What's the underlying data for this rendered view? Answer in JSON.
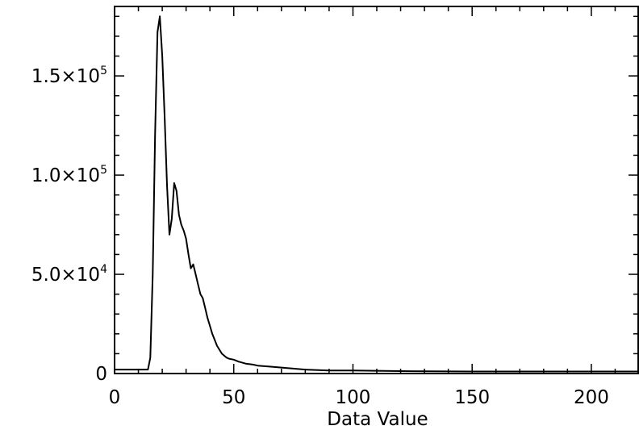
{
  "chart_data": {
    "type": "line",
    "title": "",
    "xlabel": "Data Value",
    "ylabel": "",
    "xlim": [
      0,
      220
    ],
    "ylim": [
      0,
      185000
    ],
    "grid": false,
    "legend": "none",
    "line_color": "#000000",
    "x_ticks": [
      {
        "value": 0,
        "label": "0"
      },
      {
        "value": 50,
        "label": "50"
      },
      {
        "value": 100,
        "label": "100"
      },
      {
        "value": 150,
        "label": "150"
      },
      {
        "value": 200,
        "label": "200"
      }
    ],
    "y_ticks": [
      {
        "value": 0,
        "mantissa": "0",
        "exponent": ""
      },
      {
        "value": 50000,
        "mantissa": "5.0×10",
        "exponent": "4"
      },
      {
        "value": 100000,
        "mantissa": "1.0×10",
        "exponent": "5"
      },
      {
        "value": 150000,
        "mantissa": "1.5×10",
        "exponent": "5"
      }
    ],
    "series": [
      {
        "x": [
          0,
          14,
          15,
          16,
          17,
          18,
          19,
          20,
          21,
          22,
          23,
          24,
          25,
          26,
          27,
          28,
          29,
          30,
          31,
          32,
          33,
          34,
          35,
          36,
          37,
          38,
          39,
          40,
          41,
          42,
          43,
          44,
          45,
          46,
          47,
          48,
          50,
          52,
          55,
          58,
          60,
          65,
          70,
          75,
          80,
          90,
          100,
          120,
          150,
          180,
          220
        ],
        "y": [
          2000,
          2000,
          8000,
          50000,
          120000,
          172000,
          180000,
          160000,
          130000,
          95000,
          70000,
          78000,
          96000,
          92000,
          80000,
          75000,
          72000,
          68000,
          60000,
          53000,
          55000,
          50000,
          45000,
          40000,
          38000,
          33000,
          28000,
          24000,
          20000,
          17000,
          14000,
          12000,
          10000,
          9000,
          8000,
          7500,
          7000,
          6000,
          5000,
          4500,
          4000,
          3500,
          3000,
          2500,
          2000,
          1500,
          1500,
          1200,
          1000,
          1000,
          1000
        ]
      }
    ]
  }
}
